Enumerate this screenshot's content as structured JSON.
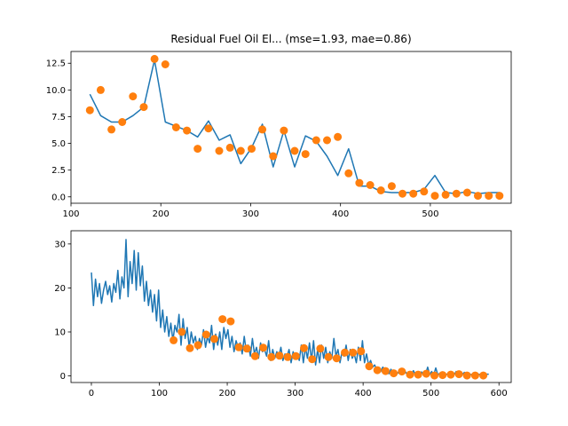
{
  "figure": {
    "title": "Residual Fuel Oil El... (mse=1.93, mae=0.86)"
  },
  "chart_data": [
    {
      "type": "line",
      "title": "Residual Fuel Oil El... (mse=1.93, mae=0.86)",
      "xlabel": "",
      "ylabel": "",
      "xlim": [
        100,
        590
      ],
      "ylim": [
        -0.6,
        13.6
      ],
      "xticks": [
        100,
        200,
        300,
        400,
        500
      ],
      "yticks": [
        0.0,
        2.5,
        5.0,
        7.5,
        10.0,
        12.5
      ],
      "ytick_labels": [
        "0.0",
        "2.5",
        "5.0",
        "7.5",
        "10.0",
        "12.5"
      ],
      "grid": false,
      "colors": {
        "line": "#1f77b4",
        "points": "#ff7f0e"
      },
      "series": [
        {
          "kind": "line",
          "x": [
            121,
            133,
            145,
            157,
            169,
            181,
            193,
            205,
            217,
            229,
            241,
            253,
            265,
            277,
            289,
            301,
            313,
            325,
            337,
            349,
            361,
            373,
            385,
            397,
            409,
            421,
            433,
            445,
            457,
            469,
            481,
            493,
            505,
            517,
            529,
            541,
            553,
            565,
            577
          ],
          "y": [
            9.6,
            7.6,
            7.0,
            7.0,
            7.6,
            8.4,
            12.8,
            7.0,
            6.6,
            6.2,
            5.6,
            7.1,
            5.3,
            5.8,
            3.1,
            4.6,
            6.8,
            2.8,
            6.2,
            2.8,
            5.7,
            5.2,
            3.8,
            2.0,
            4.5,
            1.0,
            1.0,
            0.5,
            0.4,
            0.4,
            0.4,
            0.7,
            2.0,
            0.4,
            0.3,
            0.5,
            0.3,
            0.4,
            0.4
          ]
        },
        {
          "kind": "scatter",
          "x": [
            121,
            133,
            145,
            157,
            169,
            181,
            193,
            205,
            217,
            229,
            241,
            253,
            265,
            277,
            289,
            301,
            313,
            325,
            337,
            349,
            361,
            373,
            385,
            397,
            409,
            421,
            433,
            445,
            457,
            469,
            481,
            493,
            505,
            517,
            529,
            541,
            553,
            565,
            577
          ],
          "y": [
            8.1,
            10.0,
            6.3,
            7.0,
            9.4,
            8.4,
            12.9,
            12.4,
            6.5,
            6.2,
            4.5,
            6.4,
            4.3,
            4.6,
            4.3,
            4.5,
            6.3,
            3.8,
            6.2,
            4.3,
            4.0,
            5.3,
            5.3,
            5.6,
            2.2,
            1.3,
            1.1,
            0.6,
            1.0,
            0.3,
            0.3,
            0.5,
            0.1,
            0.2,
            0.3,
            0.4,
            0.1,
            0.1,
            0.1
          ]
        }
      ]
    },
    {
      "type": "line",
      "title": "",
      "xlabel": "",
      "ylabel": "",
      "xlim": [
        -30,
        618
      ],
      "ylim": [
        -1.5,
        33.0
      ],
      "xticks": [
        0,
        100,
        200,
        300,
        400,
        500,
        600
      ],
      "yticks": [
        0,
        10,
        20,
        30
      ],
      "grid": false,
      "colors": {
        "line": "#1f77b4",
        "points": "#ff7f0e"
      },
      "series": [
        {
          "kind": "line",
          "x": [
            0,
            3,
            6,
            9,
            12,
            15,
            18,
            21,
            24,
            27,
            30,
            33,
            36,
            39,
            42,
            45,
            48,
            51,
            54,
            57,
            60,
            63,
            66,
            69,
            72,
            75,
            78,
            81,
            84,
            87,
            90,
            93,
            96,
            99,
            102,
            105,
            108,
            111,
            114,
            117,
            120,
            123,
            126,
            129,
            132,
            135,
            138,
            141,
            144,
            147,
            150,
            153,
            156,
            159,
            162,
            165,
            168,
            171,
            174,
            177,
            180,
            183,
            186,
            189,
            192,
            195,
            198,
            201,
            204,
            207,
            210,
            213,
            216,
            219,
            222,
            225,
            228,
            231,
            234,
            237,
            240,
            243,
            246,
            249,
            252,
            255,
            258,
            261,
            264,
            267,
            270,
            273,
            276,
            279,
            282,
            285,
            288,
            291,
            294,
            297,
            300,
            303,
            306,
            309,
            312,
            315,
            318,
            321,
            324,
            327,
            330,
            333,
            336,
            339,
            342,
            345,
            348,
            351,
            354,
            357,
            360,
            363,
            366,
            369,
            372,
            375,
            378,
            381,
            384,
            387,
            390,
            393,
            396,
            399,
            402,
            405,
            408,
            411,
            414,
            417,
            420,
            423,
            426,
            429,
            432,
            435,
            438,
            441,
            444,
            447,
            450,
            453,
            456,
            459,
            462,
            465,
            468,
            471,
            474,
            477,
            480,
            483,
            486,
            489,
            492,
            495,
            498,
            501,
            504,
            507,
            510,
            513,
            516,
            519,
            522,
            525,
            528,
            531,
            534,
            537,
            540,
            543,
            546,
            549,
            552,
            555,
            558,
            561,
            564,
            567,
            570,
            573,
            576,
            579,
            582,
            585
          ],
          "y": [
            23.5,
            16.0,
            22.0,
            18.0,
            21.0,
            16.5,
            19.5,
            21.5,
            18.5,
            20.5,
            16.8,
            21.0,
            19.0,
            24.0,
            17.5,
            22.5,
            20.0,
            31.0,
            18.0,
            26.0,
            21.0,
            28.5,
            19.5,
            28.0,
            20.5,
            25.0,
            17.0,
            21.5,
            16.0,
            19.5,
            14.5,
            18.5,
            12.5,
            19.5,
            11.0,
            15.0,
            10.0,
            13.5,
            9.0,
            12.0,
            8.0,
            11.5,
            10.0,
            14.0,
            7.0,
            13.0,
            8.5,
            11.0,
            6.5,
            10.0,
            7.5,
            9.0,
            6.0,
            8.5,
            7.0,
            10.5,
            6.5,
            9.0,
            7.5,
            11.5,
            6.0,
            9.5,
            7.0,
            10.0,
            6.0,
            11.0,
            8.5,
            10.5,
            6.5,
            9.0,
            5.5,
            8.0,
            6.5,
            7.5,
            5.0,
            9.0,
            5.5,
            7.0,
            4.5,
            8.5,
            5.0,
            6.5,
            4.0,
            7.5,
            5.5,
            6.0,
            4.5,
            8.0,
            3.5,
            6.0,
            4.0,
            5.5,
            4.5,
            6.5,
            3.5,
            5.0,
            4.5,
            6.0,
            3.0,
            5.5,
            4.0,
            5.0,
            3.5,
            7.0,
            3.0,
            6.5,
            4.0,
            7.5,
            3.5,
            8.0,
            2.5,
            6.0,
            3.0,
            7.0,
            4.0,
            6.5,
            3.0,
            5.5,
            4.0,
            8.5,
            4.5,
            6.0,
            3.0,
            5.5,
            4.5,
            7.0,
            3.5,
            6.0,
            4.0,
            5.0,
            3.0,
            6.5,
            3.5,
            8.0,
            3.0,
            5.0,
            2.5,
            3.5,
            2.0,
            2.5,
            1.5,
            2.0,
            1.0,
            2.0,
            1.5,
            1.0,
            0.5,
            1.5,
            0.8,
            1.2,
            0.5,
            1.0,
            0.7,
            0.5,
            1.0,
            0.3,
            0.8,
            0.4,
            1.2,
            0.2,
            0.6,
            0.3,
            0.9,
            0.2,
            0.5,
            2.0,
            0.3,
            1.0,
            0.2,
            1.8,
            0.3,
            0.6,
            0.2,
            0.8,
            0.3,
            0.5,
            0.2,
            0.6,
            0.3,
            1.0,
            0.2,
            0.4,
            0.3,
            0.8,
            0.2,
            0.5,
            0.3,
            0.4,
            0.2,
            0.3,
            0.4,
            0.3,
            0.3,
            0.5,
            0.4,
            0.4
          ]
        },
        {
          "kind": "scatter",
          "x": [
            121,
            133,
            145,
            157,
            169,
            181,
            193,
            205,
            217,
            229,
            241,
            253,
            265,
            277,
            289,
            301,
            313,
            325,
            337,
            349,
            361,
            373,
            385,
            397,
            409,
            421,
            433,
            445,
            457,
            469,
            481,
            493,
            505,
            517,
            529,
            541,
            553,
            565,
            577
          ],
          "y": [
            8.1,
            10.0,
            6.3,
            7.0,
            9.4,
            8.4,
            12.9,
            12.4,
            6.5,
            6.2,
            4.5,
            6.4,
            4.3,
            4.6,
            4.3,
            4.5,
            6.3,
            3.8,
            6.2,
            4.3,
            4.0,
            5.3,
            5.3,
            5.6,
            2.2,
            1.3,
            1.1,
            0.6,
            1.0,
            0.3,
            0.3,
            0.5,
            0.1,
            0.2,
            0.3,
            0.4,
            0.1,
            0.1,
            0.1
          ]
        }
      ]
    }
  ]
}
